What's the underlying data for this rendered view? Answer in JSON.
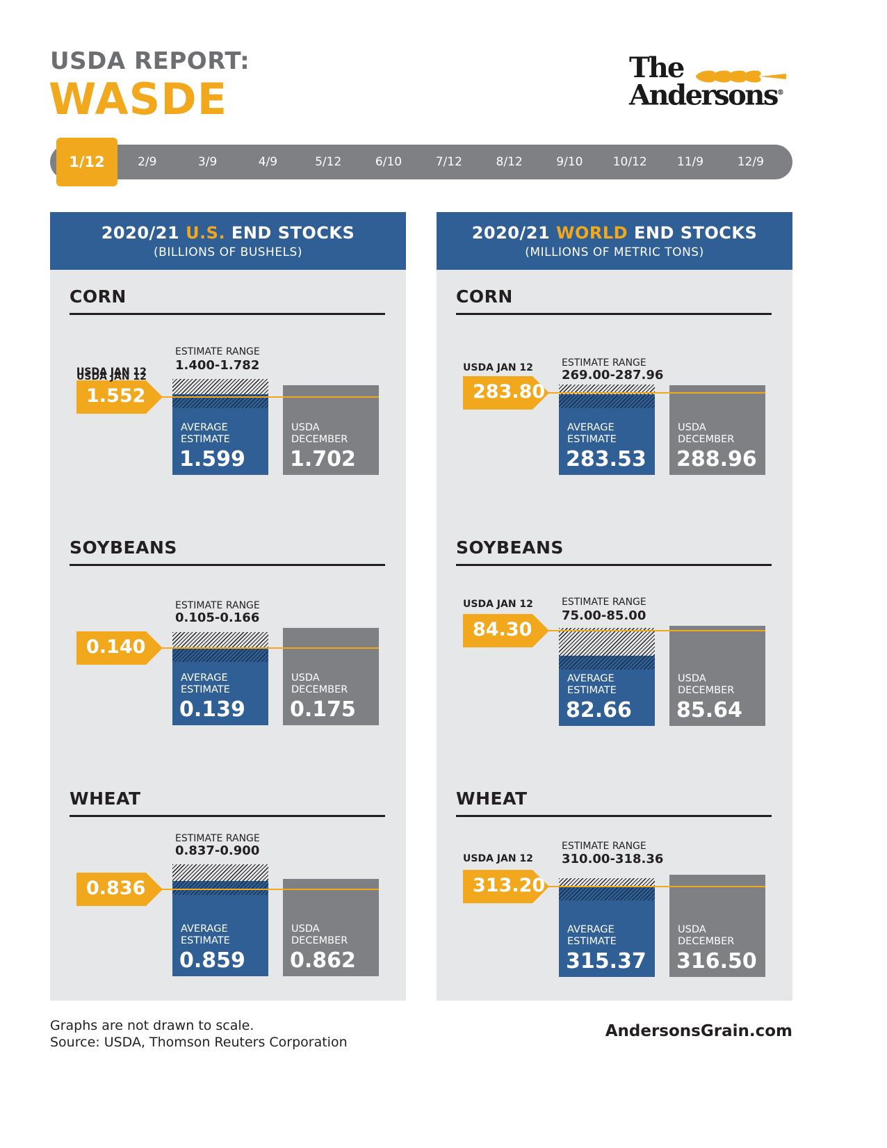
{
  "header": {
    "kicker": "USDA REPORT:",
    "title": "WASDE"
  },
  "logo": {
    "line1": "The",
    "line2": "Andersons",
    "reg": "®"
  },
  "timeline": {
    "active": "1/12",
    "dates": [
      "1/12",
      "2/9",
      "3/9",
      "4/9",
      "5/12",
      "6/10",
      "7/12",
      "8/12",
      "9/10",
      "10/12",
      "11/9",
      "12/9"
    ]
  },
  "colors": {
    "orange": "#f2a81d",
    "blue": "#2f5f95",
    "gray": "#7f8083",
    "panel_bg": "#e6e7e8"
  },
  "labels": {
    "usda_jan": "USDA JAN 12",
    "estimate_range": "ESTIMATE RANGE",
    "average_1": "AVERAGE",
    "average_2": "ESTIMATE",
    "december_1": "USDA",
    "december_2": "DECEMBER"
  },
  "panels": [
    {
      "title_pre": "2020/21 ",
      "title_hl": "U.S.",
      "title_post": " END STOCKS",
      "subtitle": "(BILLIONS OF BUSHELS)"
    },
    {
      "title_pre": "2020/21 ",
      "title_hl": "WORLD",
      "title_post": " END STOCKS",
      "subtitle": "(MILLIONS OF METRIC TONS)"
    }
  ],
  "chart_data": [
    {
      "type": "bar",
      "title": "2020/21 U.S. END STOCKS",
      "unit": "(BILLIONS OF BUSHELS)",
      "commodities": [
        {
          "name": "CORN",
          "usda_jan12": "1.552",
          "estimate_range": "1.400-1.782",
          "average_estimate": "1.599",
          "usda_december": "1.702"
        },
        {
          "name": "SOYBEANS",
          "usda_jan12": "0.140",
          "estimate_range": "0.105-0.166",
          "average_estimate": "0.139",
          "usda_december": "0.175"
        },
        {
          "name": "WHEAT",
          "usda_jan12": "0.836",
          "estimate_range": "0.837-0.900",
          "average_estimate": "0.859",
          "usda_december": "0.862"
        }
      ]
    },
    {
      "type": "bar",
      "title": "2020/21 WORLD END STOCKS",
      "unit": "(MILLIONS OF METRIC TONS)",
      "commodities": [
        {
          "name": "CORN",
          "usda_jan12": "283.80",
          "estimate_range": "269.00-287.96",
          "average_estimate": "283.53",
          "usda_december": "288.96"
        },
        {
          "name": "SOYBEANS",
          "usda_jan12": "84.30",
          "estimate_range": "75.00-85.00",
          "average_estimate": "82.66",
          "usda_december": "85.64"
        },
        {
          "name": "WHEAT",
          "usda_jan12": "313.20",
          "estimate_range": "310.00-318.36",
          "average_estimate": "315.37",
          "usda_december": "316.50"
        }
      ]
    }
  ],
  "footer": {
    "note_1": "Graphs are not drawn to scale.",
    "note_2": "Source: USDA, Thomson Reuters Corporation",
    "url": "AndersonsGrain.com"
  }
}
